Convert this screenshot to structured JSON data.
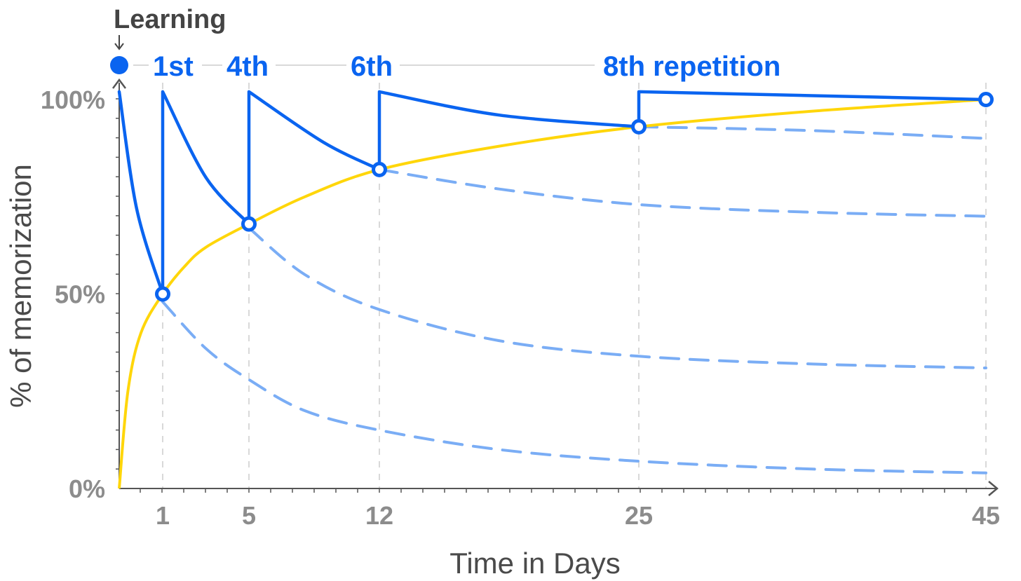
{
  "chart_data": {
    "type": "line",
    "title": "",
    "xlabel": "Time in Days",
    "ylabel": "% of memorization",
    "xlim": [
      0,
      45
    ],
    "ylim": [
      0,
      100
    ],
    "x_ticks": [
      1,
      5,
      12,
      25,
      45
    ],
    "y_ticks": [
      "0%",
      "50%",
      "100%"
    ],
    "learning_label": "Learning",
    "repetition_labels": [
      "1st",
      "4th",
      "6th",
      "8th repetition"
    ],
    "review_points": [
      {
        "x": 1,
        "y": 50
      },
      {
        "x": 5,
        "y": 68
      },
      {
        "x": 12,
        "y": 82
      },
      {
        "x": 25,
        "y": 93
      },
      {
        "x": 45,
        "y": 100
      }
    ],
    "retention_curve": {
      "x": [
        0,
        0.2,
        0.5,
        1,
        2,
        3,
        5,
        8,
        12,
        18,
        25,
        35,
        45
      ],
      "y": [
        0,
        25,
        40,
        50,
        57,
        62,
        68,
        75,
        82,
        88,
        93,
        97,
        100
      ]
    },
    "forgetting_curves": [
      {
        "x": [
          0,
          0.4,
          1
        ],
        "y": [
          102,
          72,
          50
        ]
      },
      {
        "x": [
          1,
          3,
          5
        ],
        "y": [
          102,
          80,
          68
        ]
      },
      {
        "x": [
          5,
          9,
          12
        ],
        "y": [
          102,
          89,
          82
        ]
      },
      {
        "x": [
          12,
          18,
          25
        ],
        "y": [
          102,
          96,
          93
        ]
      },
      {
        "x": [
          25,
          35,
          45
        ],
        "y": [
          102,
          101,
          100
        ]
      }
    ],
    "decay_curves": [
      {
        "x": [
          1,
          3,
          5,
          8,
          12,
          18,
          25,
          35,
          45
        ],
        "y": [
          48,
          36,
          28,
          20,
          15,
          10,
          7,
          5,
          4
        ]
      },
      {
        "x": [
          5,
          8,
          12,
          18,
          25,
          35,
          45
        ],
        "y": [
          67,
          55,
          46,
          38,
          34,
          32,
          31
        ]
      },
      {
        "x": [
          12,
          18,
          25,
          35,
          45
        ],
        "y": [
          82,
          77,
          73,
          71,
          70
        ]
      },
      {
        "x": [
          25,
          35,
          45
        ],
        "y": [
          93,
          92,
          90
        ]
      }
    ],
    "colors": {
      "review": "#0a64f0",
      "decay": "#7aadf5",
      "retention": "#ffd60a",
      "axis": "#555555",
      "tick_text": "#8c8c8c",
      "grid": "#d9d9d9"
    }
  }
}
